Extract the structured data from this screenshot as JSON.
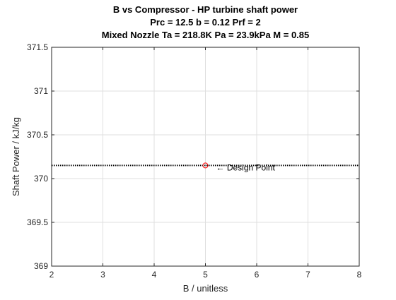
{
  "chart_data": {
    "type": "line",
    "title_lines": [
      "B vs Compressor - HP turbine shaft power",
      "Prc = 12.5 b = 0.12 Prf = 2",
      "Mixed Nozzle Ta = 218.8K Pa = 23.9kPa M = 0.85"
    ],
    "xlabel": "B / unitless",
    "ylabel": "Shaft Power / kJ/kg",
    "xlim": [
      2,
      8
    ],
    "ylim": [
      369,
      371.5
    ],
    "x_ticks": [
      2,
      3,
      4,
      5,
      6,
      7,
      8
    ],
    "x_tick_labels": [
      "2",
      "3",
      "4",
      "5",
      "6",
      "7",
      "8"
    ],
    "y_ticks": [
      369,
      369.5,
      370,
      370.5,
      371,
      371.5
    ],
    "y_tick_labels": [
      "369",
      "369.5",
      "370",
      "370.5",
      "371",
      "371.5"
    ],
    "grid": true,
    "series": [
      {
        "style": "dotted",
        "color": "#000000",
        "x": [
          2,
          8
        ],
        "y": [
          370.15,
          370.15
        ]
      }
    ],
    "design_point": {
      "x": 5,
      "y": 370.15,
      "marker": "circle",
      "color": "#ff0000"
    },
    "annotation": {
      "text": "← Design Point",
      "x": 5,
      "y": 370.15
    }
  }
}
